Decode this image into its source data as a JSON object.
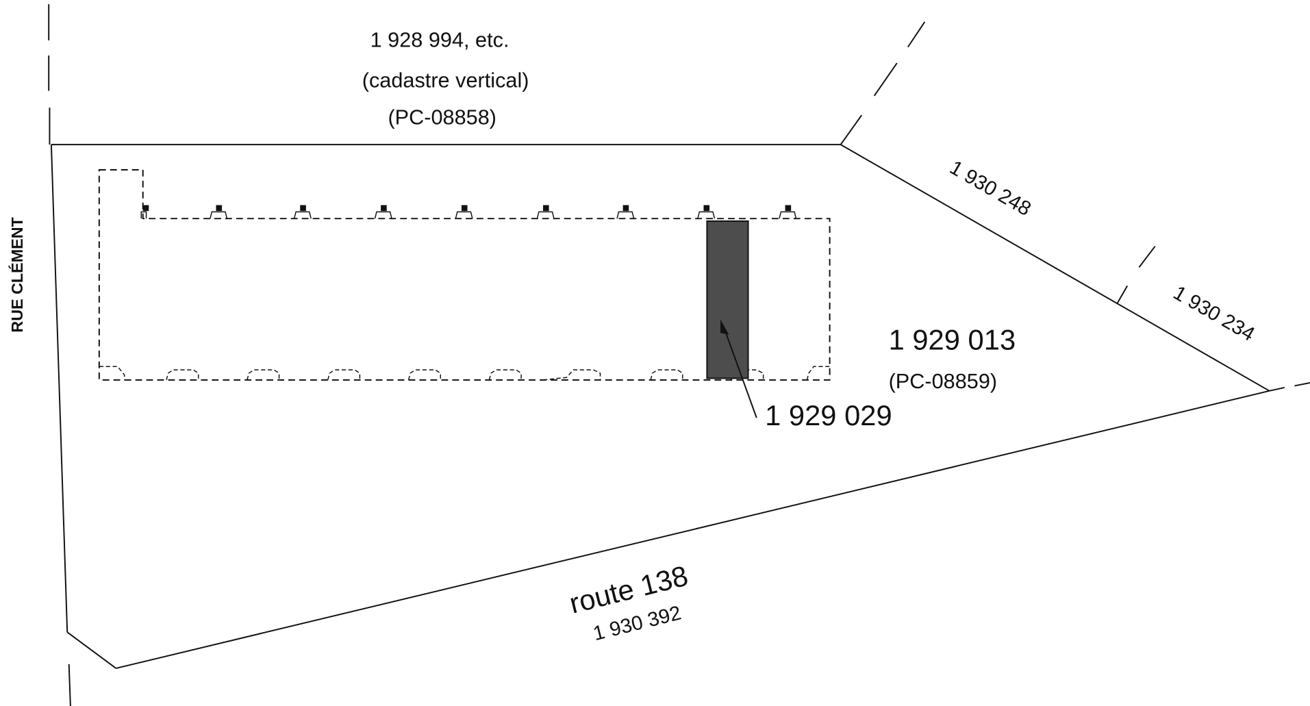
{
  "lots": {
    "north": {
      "number": "1 928 994, etc.",
      "note": "(cadastre vertical)",
      "plan": "(PC-08858)"
    },
    "main": {
      "number": "1 929 013",
      "plan": "(PC-08859)"
    },
    "subject": {
      "number": "1 929 029"
    },
    "east_upper": {
      "number": "1 930 248"
    },
    "east_lower": {
      "number": "1 930 234"
    },
    "road": {
      "name": "route 138",
      "number": "1 930 392"
    }
  },
  "streets": {
    "west": "RUE CLÉMENT"
  },
  "colors": {
    "line": "#111111",
    "subject_fill": "#4d4d4d",
    "background": "#ffffff"
  }
}
